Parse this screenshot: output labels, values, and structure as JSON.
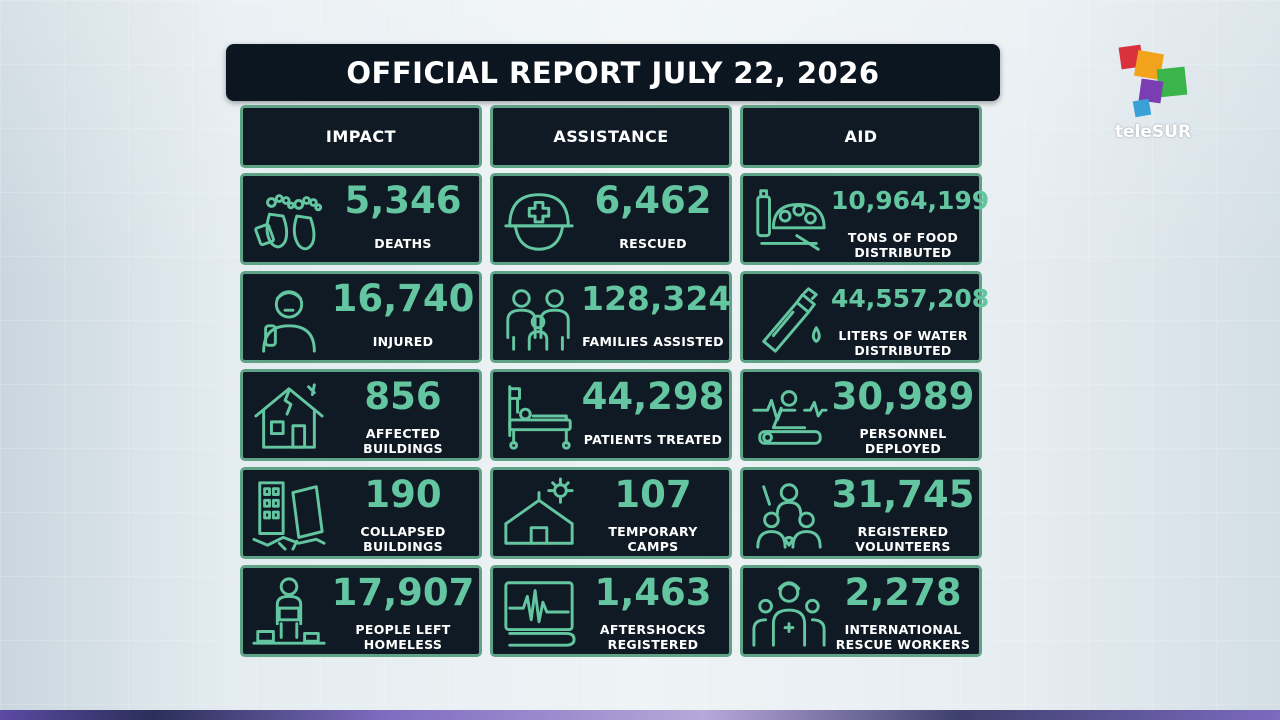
{
  "title": "OFFICIAL REPORT JULY 22, 2026",
  "logo_text": "teleSUR",
  "columns": [
    {
      "header": "IMPACT"
    },
    {
      "header": "ASSISTANCE"
    },
    {
      "header": "AID"
    }
  ],
  "cards": [
    {
      "value": "5,346",
      "label": "DEATHS",
      "icon": "feet-icon"
    },
    {
      "value": "6,462",
      "label": "RESCUED",
      "icon": "rescue-helmet-icon"
    },
    {
      "value": "10,964,199",
      "label": "TONS OF FOOD DISTRIBUTED",
      "icon": "food-icon"
    },
    {
      "value": "16,740",
      "label": "INJURED",
      "icon": "injured-person-icon"
    },
    {
      "value": "128,324",
      "label": "FAMILIES ASSISTED",
      "icon": "family-icon"
    },
    {
      "value": "44,557,208",
      "label": "LITERS OF WATER DISTRIBUTED",
      "icon": "water-bottle-icon"
    },
    {
      "value": "856",
      "label": "AFFECTED BUILDINGS",
      "icon": "damaged-house-icon"
    },
    {
      "value": "44,298",
      "label": "PATIENTS TREATED",
      "icon": "hospital-bed-icon"
    },
    {
      "value": "30,989",
      "label": "PERSONNEL DEPLOYED",
      "icon": "cpr-personnel-icon"
    },
    {
      "value": "190",
      "label": "COLLAPSED BUILDINGS",
      "icon": "collapsed-building-icon"
    },
    {
      "value": "107",
      "label": "TEMPORARY CAMPS",
      "icon": "tent-icon"
    },
    {
      "value": "31,745",
      "label": "REGISTERED VOLUNTEERS",
      "icon": "volunteers-icon"
    },
    {
      "value": "17,907",
      "label": "PEOPLE LEFT HOMELESS",
      "icon": "homeless-person-icon"
    },
    {
      "value": "1,463",
      "label": "AFTERSHOCKS REGISTERED",
      "icon": "seismograph-icon"
    },
    {
      "value": "2,278",
      "label": "INTERNATIONAL RESCUE WORKERS",
      "icon": "rescue-workers-icon"
    }
  ],
  "colors": {
    "accent": "#63c6a0",
    "border": "#5fa386",
    "panel": "#0f1a24"
  }
}
